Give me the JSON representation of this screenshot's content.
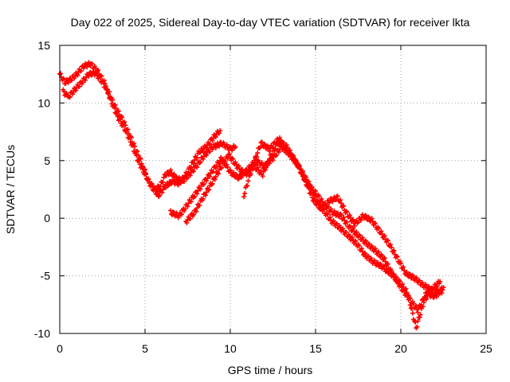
{
  "chart_data": {
    "type": "scatter",
    "title": "Day 022 of 2025, Sidereal Day-to-day VTEC variation (SDTVAR) for receiver lkta",
    "xlabel": "GPS time / hours",
    "ylabel": "SDTVAR / TECUs",
    "xlim": [
      0,
      25
    ],
    "ylim": [
      -10,
      15
    ],
    "xticks": [
      0,
      5,
      10,
      15,
      20,
      25
    ],
    "yticks": [
      -10,
      -5,
      0,
      5,
      10,
      15
    ],
    "grid": true,
    "marker": "+",
    "series_color": "#ff0000",
    "series": [
      {
        "name": "track-1",
        "x": [
          0.0,
          0.3,
          0.6,
          1.0,
          1.4,
          1.8,
          2.2,
          2.6,
          3.0,
          3.4,
          3.8,
          4.2,
          4.6,
          5.0,
          5.3,
          5.6,
          5.9,
          6.2,
          6.5,
          6.8,
          7.2,
          7.6,
          8.0,
          8.5,
          9.0,
          9.5,
          10.0,
          10.3
        ],
        "y": [
          12.5,
          11.8,
          12.0,
          12.5,
          13.2,
          13.4,
          12.8,
          11.8,
          10.2,
          8.8,
          7.8,
          6.5,
          5.0,
          3.8,
          3.0,
          2.5,
          2.8,
          3.8,
          4.0,
          3.5,
          3.2,
          3.8,
          4.5,
          5.5,
          6.2,
          6.5,
          6.0,
          6.2
        ]
      },
      {
        "name": "track-2",
        "x": [
          0.2,
          0.5,
          0.9,
          1.3,
          1.7,
          2.1,
          2.5,
          2.9,
          3.3,
          3.7,
          4.1,
          4.5,
          4.9,
          5.2,
          5.5,
          5.8,
          6.2,
          6.6,
          7.0,
          7.4,
          7.8,
          8.2,
          8.6,
          9.0,
          9.4
        ],
        "y": [
          11.0,
          10.5,
          11.2,
          11.8,
          12.5,
          12.6,
          11.8,
          10.8,
          9.5,
          8.5,
          7.2,
          5.8,
          4.5,
          3.2,
          2.5,
          2.0,
          2.8,
          3.2,
          3.0,
          3.8,
          4.8,
          5.8,
          6.2,
          7.0,
          7.6
        ]
      },
      {
        "name": "track-3",
        "x": [
          6.5,
          7.0,
          7.5,
          8.0,
          8.5,
          9.0,
          9.5,
          10.0,
          10.5,
          11.0,
          11.5,
          12.0,
          12.5,
          13.0,
          13.5,
          14.0,
          14.5,
          15.0,
          15.5,
          16.0,
          16.5,
          17.0,
          17.5,
          18.0,
          18.5,
          19.0,
          19.5,
          20.0,
          20.5,
          21.0,
          21.5,
          22.0,
          22.5
        ],
        "y": [
          0.5,
          0.2,
          1.2,
          2.2,
          3.2,
          4.2,
          5.2,
          4.0,
          3.5,
          4.2,
          5.0,
          4.5,
          5.2,
          6.2,
          5.5,
          4.5,
          3.0,
          2.2,
          1.2,
          0.5,
          0.2,
          -0.8,
          -1.5,
          -2.2,
          -2.8,
          -3.5,
          -4.8,
          -6.0,
          -7.0,
          -8.0,
          -6.5,
          -6.8,
          -6.0
        ]
      },
      {
        "name": "track-4",
        "x": [
          7.4,
          7.9,
          8.4,
          8.9,
          9.4,
          9.9,
          10.4,
          10.9,
          11.4,
          11.9,
          12.4,
          12.9,
          13.4,
          13.9,
          14.4,
          14.9,
          15.4,
          15.9,
          16.4,
          16.9,
          17.4,
          17.9,
          18.4,
          18.9,
          19.4,
          19.9,
          20.4,
          20.9,
          21.4,
          21.9,
          22.4
        ],
        "y": [
          -0.3,
          0.5,
          1.8,
          3.0,
          4.3,
          5.5,
          4.5,
          3.8,
          4.5,
          3.8,
          5.5,
          6.8,
          5.8,
          4.8,
          3.2,
          1.5,
          0.8,
          -0.2,
          -0.8,
          -1.5,
          -2.2,
          -3.2,
          -3.8,
          -4.2,
          -4.8,
          -5.5,
          -6.5,
          -9.5,
          -7.0,
          -6.2,
          -6.5
        ]
      },
      {
        "name": "track-5",
        "x": [
          10.8,
          11.3,
          11.8,
          12.3,
          12.8,
          13.3,
          13.8,
          14.3,
          14.8,
          15.3,
          15.8,
          16.3,
          16.8,
          17.3,
          17.8,
          18.3,
          18.8,
          19.3,
          19.8,
          20.3,
          20.8,
          21.3,
          21.8,
          22.3
        ],
        "y": [
          2.0,
          4.5,
          6.5,
          6.0,
          6.8,
          6.2,
          5.0,
          3.8,
          2.5,
          0.8,
          1.5,
          1.8,
          0.5,
          -0.5,
          0.2,
          -0.2,
          -1.2,
          -2.2,
          -3.5,
          -4.8,
          -5.2,
          -5.8,
          -6.2,
          -5.5
        ]
      }
    ]
  }
}
